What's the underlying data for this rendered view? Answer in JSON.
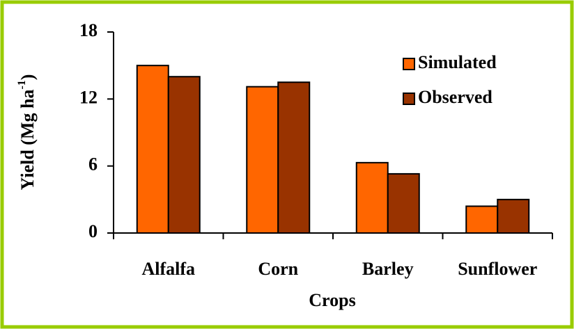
{
  "chart_data": {
    "type": "bar",
    "x_label": "Crops",
    "y_label": "Yield (Mg ha",
    "y_label_sup": "-1",
    "y_label_end": ")",
    "categories": [
      "Alfalfa",
      "Corn",
      "Barley",
      "Sunflower"
    ],
    "series": [
      {
        "name": "Simulated",
        "color": "#ff6600",
        "values": [
          15.0,
          13.1,
          6.3,
          2.4
        ]
      },
      {
        "name": "Observed",
        "color": "#993300",
        "values": [
          14.0,
          13.5,
          5.3,
          3.0
        ]
      }
    ],
    "ylim": [
      0,
      18
    ],
    "yticks": [
      0,
      6,
      12,
      18
    ],
    "grid": false,
    "legend": "upper right"
  }
}
